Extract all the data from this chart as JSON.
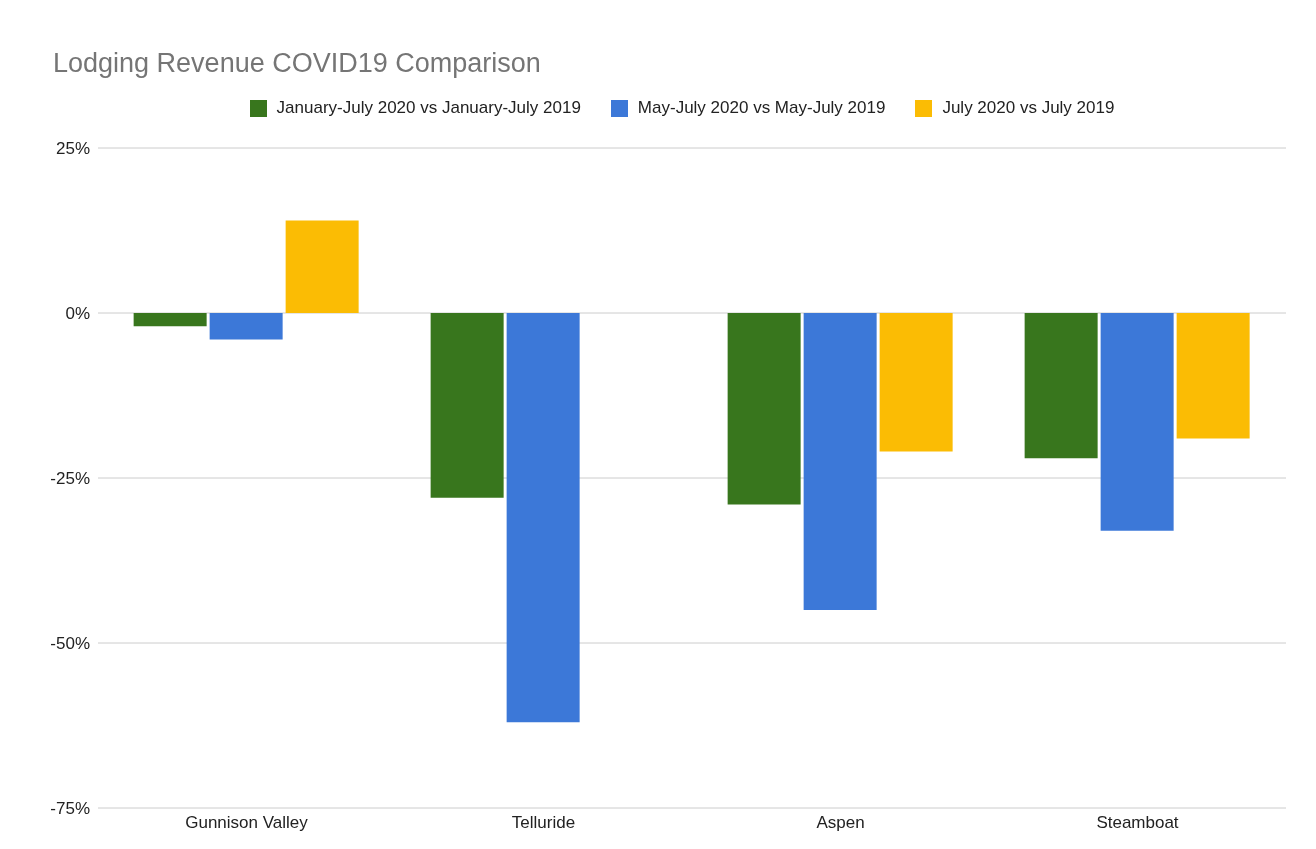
{
  "chart_data": {
    "type": "bar",
    "title": "Lodging Revenue COVID19 Comparison",
    "categories": [
      "Gunnison Valley",
      "Telluride",
      "Aspen",
      "Steamboat"
    ],
    "series": [
      {
        "name": "January-July 2020 vs January-July 2019",
        "color": "#38761d",
        "values": [
          -2,
          -28,
          -29,
          -22
        ]
      },
      {
        "name": "May-July 2020 vs May-July 2019",
        "color": "#3c78d8",
        "values": [
          -4,
          -62,
          -45,
          -33
        ]
      },
      {
        "name": "July 2020 vs July 2019",
        "color": "#fbbc04",
        "values": [
          14,
          null,
          -21,
          -19
        ]
      }
    ],
    "ylim": [
      -75,
      25
    ],
    "yticks": [
      {
        "value": -75,
        "label": "-75%"
      },
      {
        "value": -50,
        "label": "-50%"
      },
      {
        "value": -25,
        "label": "-25%"
      },
      {
        "value": 0,
        "label": "0%"
      },
      {
        "value": 25,
        "label": "25%"
      }
    ],
    "grid": "y",
    "legend": "top"
  }
}
